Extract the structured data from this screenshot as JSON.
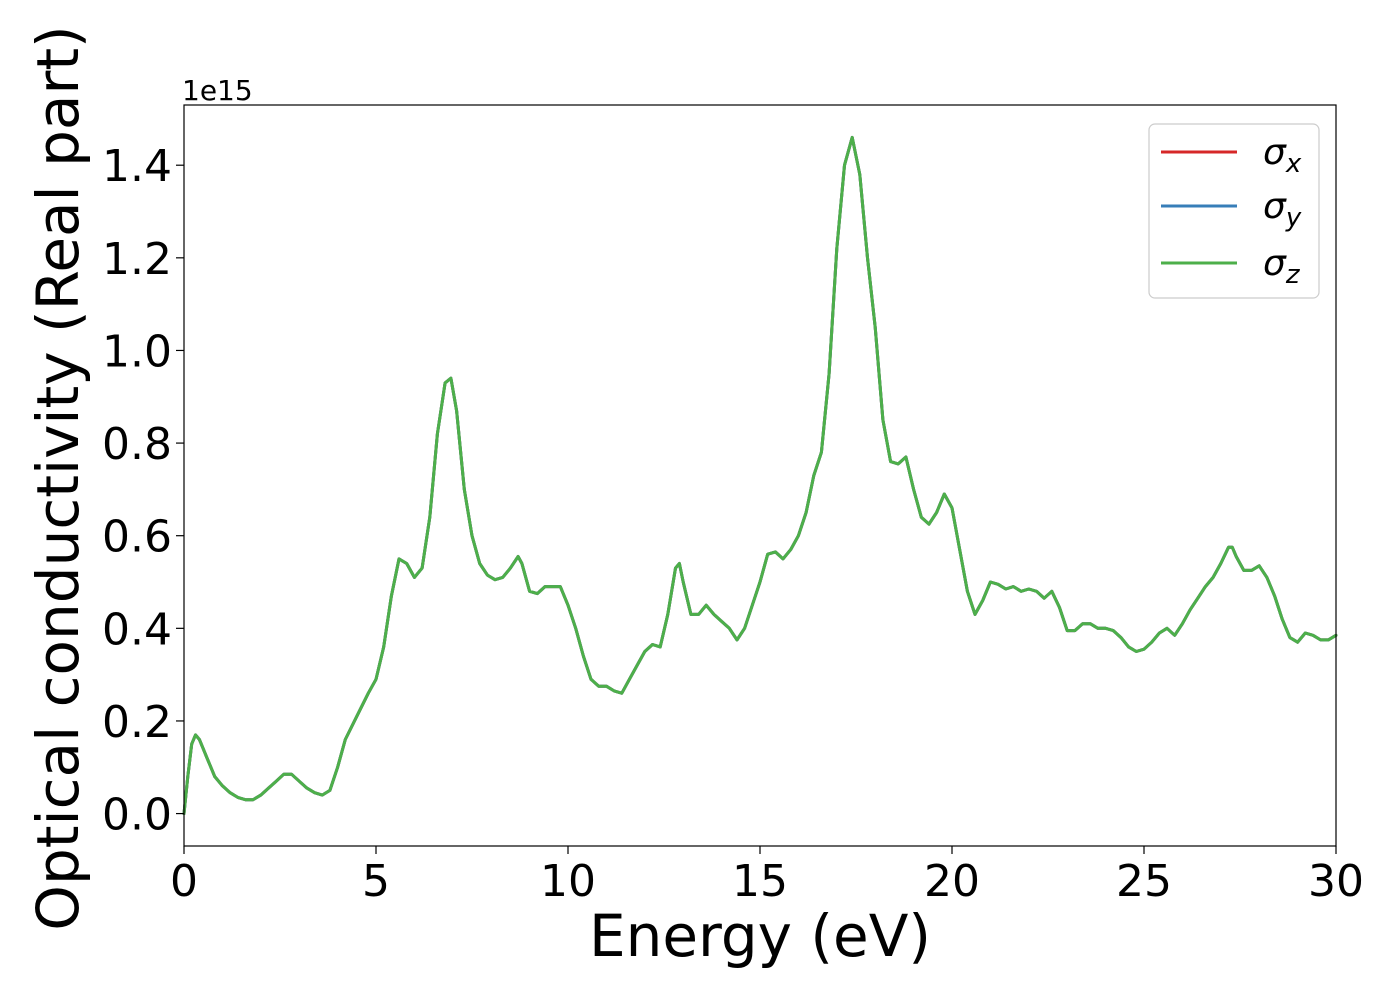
{
  "chart_data": {
    "type": "line",
    "title": "",
    "xlabel": "Energy (eV)",
    "ylabel": "Optical conductivity (Real part)",
    "y_offset_label": "1e15",
    "xlim": [
      0,
      30
    ],
    "ylim": [
      -0.07,
      1.53
    ],
    "xticks": [
      0,
      5,
      10,
      15,
      20,
      25,
      30
    ],
    "yticks": [
      0.0,
      0.2,
      0.4,
      0.6,
      0.8,
      1.0,
      1.2,
      1.4
    ],
    "xtick_labels": [
      "0",
      "5",
      "10",
      "15",
      "20",
      "25",
      "30"
    ],
    "ytick_labels": [
      "0.0",
      "0.2",
      "0.4",
      "0.6",
      "0.8",
      "1.0",
      "1.2",
      "1.4"
    ],
    "grid": false,
    "legend_position": "top-right",
    "x": [
      0,
      0.1,
      0.2,
      0.3,
      0.4,
      0.5,
      0.6,
      0.7,
      0.8,
      1.0,
      1.2,
      1.4,
      1.6,
      1.8,
      2.0,
      2.2,
      2.4,
      2.6,
      2.8,
      3.0,
      3.2,
      3.4,
      3.6,
      3.8,
      4.0,
      4.2,
      4.5,
      4.8,
      5.0,
      5.2,
      5.4,
      5.6,
      5.8,
      6.0,
      6.2,
      6.4,
      6.6,
      6.8,
      6.95,
      7.1,
      7.3,
      7.5,
      7.7,
      7.9,
      8.1,
      8.3,
      8.5,
      8.7,
      8.8,
      9.0,
      9.2,
      9.4,
      9.6,
      9.8,
      10.0,
      10.2,
      10.4,
      10.6,
      10.8,
      11.0,
      11.2,
      11.4,
      11.6,
      11.8,
      12.0,
      12.2,
      12.4,
      12.6,
      12.8,
      12.9,
      13.0,
      13.2,
      13.4,
      13.6,
      13.8,
      14.0,
      14.2,
      14.4,
      14.6,
      14.8,
      15.0,
      15.2,
      15.4,
      15.6,
      15.8,
      16.0,
      16.2,
      16.4,
      16.6,
      16.8,
      17.0,
      17.2,
      17.4,
      17.6,
      17.8,
      18.0,
      18.2,
      18.4,
      18.6,
      18.8,
      19.0,
      19.2,
      19.4,
      19.6,
      19.8,
      20.0,
      20.2,
      20.4,
      20.6,
      20.8,
      21.0,
      21.2,
      21.4,
      21.6,
      21.8,
      22.0,
      22.2,
      22.4,
      22.6,
      22.8,
      23.0,
      23.2,
      23.4,
      23.6,
      23.8,
      24.0,
      24.2,
      24.4,
      24.6,
      24.8,
      25.0,
      25.2,
      25.4,
      25.6,
      25.8,
      26.0,
      26.2,
      26.4,
      26.6,
      26.8,
      27.0,
      27.2,
      27.3,
      27.4,
      27.6,
      27.8,
      28.0,
      28.2,
      28.4,
      28.6,
      28.8,
      29.0,
      29.2,
      29.4,
      29.6,
      29.8,
      30.0
    ],
    "series": [
      {
        "name": "σ_x",
        "color": "#d62728",
        "values": [
          0.0,
          0.08,
          0.15,
          0.17,
          0.16,
          0.14,
          0.12,
          0.1,
          0.08,
          0.06,
          0.045,
          0.035,
          0.03,
          0.03,
          0.04,
          0.055,
          0.07,
          0.085,
          0.085,
          0.07,
          0.055,
          0.045,
          0.04,
          0.05,
          0.1,
          0.16,
          0.21,
          0.26,
          0.29,
          0.36,
          0.47,
          0.55,
          0.54,
          0.51,
          0.53,
          0.64,
          0.82,
          0.93,
          0.94,
          0.87,
          0.7,
          0.6,
          0.54,
          0.515,
          0.505,
          0.51,
          0.53,
          0.555,
          0.54,
          0.48,
          0.475,
          0.49,
          0.49,
          0.49,
          0.45,
          0.4,
          0.34,
          0.29,
          0.275,
          0.275,
          0.265,
          0.26,
          0.29,
          0.32,
          0.35,
          0.365,
          0.36,
          0.43,
          0.53,
          0.54,
          0.5,
          0.43,
          0.43,
          0.45,
          0.43,
          0.415,
          0.4,
          0.375,
          0.4,
          0.45,
          0.5,
          0.56,
          0.565,
          0.55,
          0.57,
          0.6,
          0.65,
          0.73,
          0.78,
          0.95,
          1.22,
          1.4,
          1.46,
          1.38,
          1.2,
          1.05,
          0.85,
          0.76,
          0.755,
          0.77,
          0.7,
          0.64,
          0.625,
          0.65,
          0.69,
          0.66,
          0.57,
          0.48,
          0.43,
          0.46,
          0.5,
          0.495,
          0.485,
          0.49,
          0.48,
          0.485,
          0.48,
          0.465,
          0.48,
          0.445,
          0.395,
          0.395,
          0.41,
          0.41,
          0.4,
          0.4,
          0.395,
          0.38,
          0.36,
          0.35,
          0.355,
          0.37,
          0.39,
          0.4,
          0.385,
          0.41,
          0.44,
          0.465,
          0.49,
          0.51,
          0.54,
          0.575,
          0.575,
          0.555,
          0.525,
          0.525,
          0.535,
          0.51,
          0.47,
          0.42,
          0.38,
          0.37,
          0.39,
          0.385,
          0.375,
          0.375,
          0.385
        ]
      },
      {
        "name": "σ_y",
        "color": "#377eb8",
        "values": [
          0.0,
          0.08,
          0.15,
          0.17,
          0.16,
          0.14,
          0.12,
          0.1,
          0.08,
          0.06,
          0.045,
          0.035,
          0.03,
          0.03,
          0.04,
          0.055,
          0.07,
          0.085,
          0.085,
          0.07,
          0.055,
          0.045,
          0.04,
          0.05,
          0.1,
          0.16,
          0.21,
          0.26,
          0.29,
          0.36,
          0.47,
          0.55,
          0.54,
          0.51,
          0.53,
          0.64,
          0.82,
          0.93,
          0.94,
          0.87,
          0.7,
          0.6,
          0.54,
          0.515,
          0.505,
          0.51,
          0.53,
          0.555,
          0.54,
          0.48,
          0.475,
          0.49,
          0.49,
          0.49,
          0.45,
          0.4,
          0.34,
          0.29,
          0.275,
          0.275,
          0.265,
          0.26,
          0.29,
          0.32,
          0.35,
          0.365,
          0.36,
          0.43,
          0.53,
          0.54,
          0.5,
          0.43,
          0.43,
          0.45,
          0.43,
          0.415,
          0.4,
          0.375,
          0.4,
          0.45,
          0.5,
          0.56,
          0.565,
          0.55,
          0.57,
          0.6,
          0.65,
          0.73,
          0.78,
          0.95,
          1.22,
          1.4,
          1.46,
          1.38,
          1.2,
          1.05,
          0.85,
          0.76,
          0.755,
          0.77,
          0.7,
          0.64,
          0.625,
          0.65,
          0.69,
          0.66,
          0.57,
          0.48,
          0.43,
          0.46,
          0.5,
          0.495,
          0.485,
          0.49,
          0.48,
          0.485,
          0.48,
          0.465,
          0.48,
          0.445,
          0.395,
          0.395,
          0.41,
          0.41,
          0.4,
          0.4,
          0.395,
          0.38,
          0.36,
          0.35,
          0.355,
          0.37,
          0.39,
          0.4,
          0.385,
          0.41,
          0.44,
          0.465,
          0.49,
          0.51,
          0.54,
          0.575,
          0.575,
          0.555,
          0.525,
          0.525,
          0.535,
          0.51,
          0.47,
          0.42,
          0.38,
          0.37,
          0.39,
          0.385,
          0.375,
          0.375,
          0.385
        ]
      },
      {
        "name": "σ_z",
        "color": "#4daf4a",
        "values": [
          0.0,
          0.08,
          0.15,
          0.17,
          0.16,
          0.14,
          0.12,
          0.1,
          0.08,
          0.06,
          0.045,
          0.035,
          0.03,
          0.03,
          0.04,
          0.055,
          0.07,
          0.085,
          0.085,
          0.07,
          0.055,
          0.045,
          0.04,
          0.05,
          0.1,
          0.16,
          0.21,
          0.26,
          0.29,
          0.36,
          0.47,
          0.55,
          0.54,
          0.51,
          0.53,
          0.64,
          0.82,
          0.93,
          0.94,
          0.87,
          0.7,
          0.6,
          0.54,
          0.515,
          0.505,
          0.51,
          0.53,
          0.555,
          0.54,
          0.48,
          0.475,
          0.49,
          0.49,
          0.49,
          0.45,
          0.4,
          0.34,
          0.29,
          0.275,
          0.275,
          0.265,
          0.26,
          0.29,
          0.32,
          0.35,
          0.365,
          0.36,
          0.43,
          0.53,
          0.54,
          0.5,
          0.43,
          0.43,
          0.45,
          0.43,
          0.415,
          0.4,
          0.375,
          0.4,
          0.45,
          0.5,
          0.56,
          0.565,
          0.55,
          0.57,
          0.6,
          0.65,
          0.73,
          0.78,
          0.95,
          1.22,
          1.4,
          1.46,
          1.38,
          1.2,
          1.05,
          0.85,
          0.76,
          0.755,
          0.77,
          0.7,
          0.64,
          0.625,
          0.65,
          0.69,
          0.66,
          0.57,
          0.48,
          0.43,
          0.46,
          0.5,
          0.495,
          0.485,
          0.49,
          0.48,
          0.485,
          0.48,
          0.465,
          0.48,
          0.445,
          0.395,
          0.395,
          0.41,
          0.41,
          0.4,
          0.4,
          0.395,
          0.38,
          0.36,
          0.35,
          0.355,
          0.37,
          0.39,
          0.4,
          0.385,
          0.41,
          0.44,
          0.465,
          0.49,
          0.51,
          0.54,
          0.575,
          0.575,
          0.555,
          0.525,
          0.525,
          0.535,
          0.51,
          0.47,
          0.42,
          0.38,
          0.37,
          0.39,
          0.385,
          0.375,
          0.375,
          0.385
        ]
      }
    ]
  }
}
